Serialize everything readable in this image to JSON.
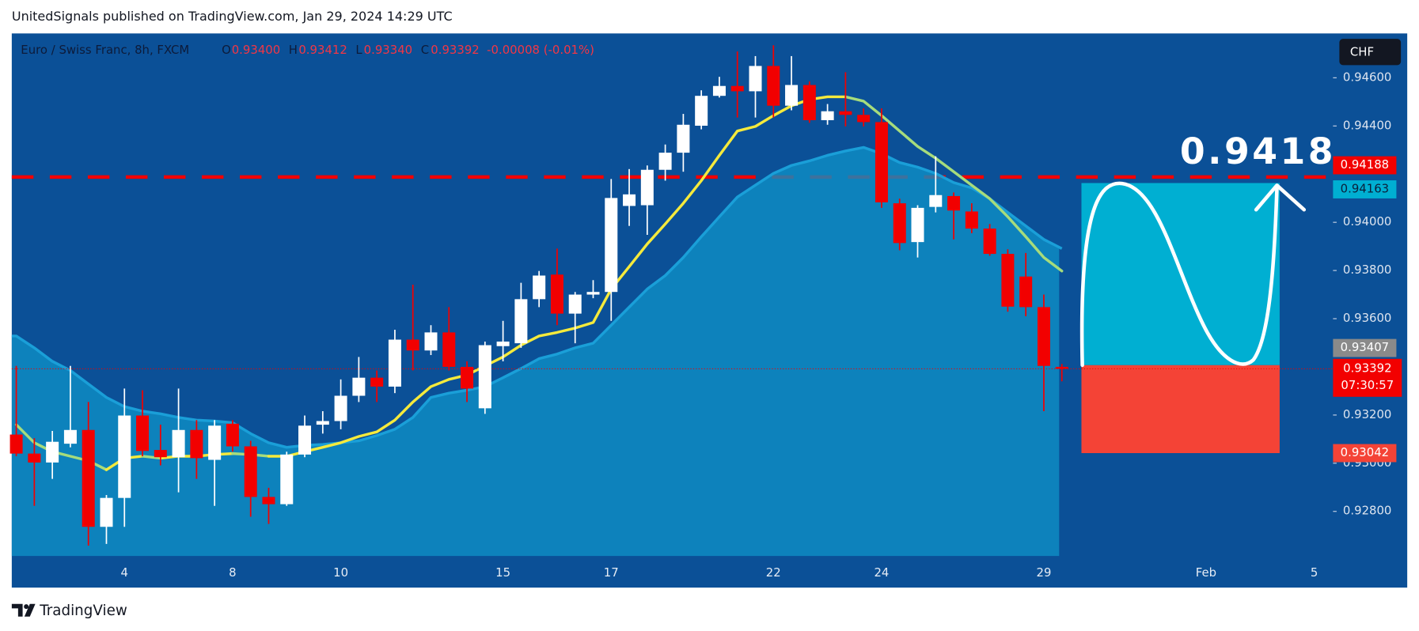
{
  "header": {
    "text": "UnitedSignals published on TradingView.com, Jan 29, 2024 14:29 UTC"
  },
  "chart_data": {
    "type": "candlestick",
    "legend": {
      "symbol": "Euro / Swiss Franc, 8h, FXCM",
      "open_label": "O",
      "open": "0.93400",
      "high_label": "H",
      "high": "0.93412",
      "low_label": "L",
      "low": "0.93340",
      "close_label": "C",
      "close": "0.93392",
      "change": "-0.00008 (-0.01%)"
    },
    "currency": "CHF",
    "categories": [
      null,
      null,
      null,
      null,
      null,
      null,
      "4",
      null,
      null,
      null,
      null,
      null,
      "8",
      null,
      null,
      null,
      null,
      null,
      "10",
      null,
      null,
      null,
      null,
      null,
      null,
      null,
      null,
      "15",
      null,
      null,
      null,
      null,
      null,
      "17",
      null,
      null,
      null,
      null,
      null,
      null,
      null,
      null,
      "22",
      null,
      null,
      null,
      null,
      null,
      "24",
      null,
      null,
      null,
      null,
      null,
      null,
      null,
      null,
      "29",
      null,
      null,
      null,
      null,
      null,
      null,
      null,
      null,
      "Feb",
      null,
      null,
      null,
      null,
      null,
      "5"
    ],
    "open": [
      0.93119,
      0.9304,
      0.93003,
      0.93081,
      0.93138,
      0.92736,
      0.92856,
      0.93198,
      0.93055,
      0.93025,
      0.93138,
      0.93014,
      0.93164,
      0.9307,
      0.9286,
      0.9283,
      0.93036,
      0.9316,
      0.93175,
      0.9328,
      0.93355,
      0.93318,
      0.93513,
      0.93468,
      0.93543,
      0.934,
      0.93228,
      0.93486,
      0.93498,
      0.93681,
      0.93783,
      0.93621,
      0.937,
      0.93711,
      0.94068,
      0.94071,
      0.94218,
      0.94289,
      0.94401,
      0.94525,
      0.94566,
      0.94544,
      0.94649,
      0.94484,
      0.9457,
      0.94424,
      0.94461,
      0.94446,
      0.94416,
      0.94079,
      0.93918,
      0.94064,
      0.94109,
      0.94045,
      0.93974,
      0.93869,
      0.93775,
      0.93648,
      0.934,
      null,
      null,
      null,
      null,
      null,
      null,
      null,
      null,
      null,
      null,
      null,
      null,
      null,
      null
    ],
    "high": [
      0.93404,
      0.93104,
      0.93134,
      0.93404,
      0.93254,
      0.92868,
      0.9331,
      0.93303,
      0.9316,
      0.9331,
      0.93179,
      0.93179,
      0.93179,
      0.93093,
      0.92898,
      0.93048,
      0.93198,
      0.93216,
      0.93348,
      0.93441,
      0.93385,
      0.93554,
      0.93741,
      0.93573,
      0.93648,
      0.93423,
      0.93505,
      0.93591,
      0.93749,
      0.93798,
      0.93891,
      0.93711,
      0.9376,
      0.9418,
      0.94221,
      0.94236,
      0.94323,
      0.9445,
      0.94548,
      0.94604,
      0.94709,
      0.9469,
      0.94735,
      0.9469,
      0.94585,
      0.94491,
      0.94623,
      0.94473,
      0.94473,
      0.94098,
      0.94071,
      0.94274,
      0.94124,
      0.94079,
      0.93993,
      0.93888,
      0.93873,
      0.937,
      0.93412,
      null,
      null,
      null,
      null,
      null,
      null,
      null,
      null,
      null,
      null,
      null,
      null,
      null,
      null
    ],
    "low": [
      0.93029,
      0.92823,
      0.92935,
      0.93066,
      0.92658,
      0.92665,
      0.92736,
      0.93029,
      0.92991,
      0.92879,
      0.92935,
      0.92823,
      0.93048,
      0.92778,
      0.92748,
      0.92823,
      0.93025,
      0.93123,
      0.93141,
      0.93254,
      0.93254,
      0.93291,
      0.93385,
      0.93449,
      0.93385,
      0.93254,
      0.93205,
      0.93423,
      0.93479,
      0.93648,
      0.93573,
      0.93498,
      0.93685,
      0.93591,
      0.93985,
      0.93948,
      0.94173,
      0.9421,
      0.94386,
      0.94518,
      0.94435,
      0.94435,
      0.94435,
      0.94465,
      0.94413,
      0.94405,
      0.94398,
      0.94398,
      0.9406,
      0.93884,
      0.93854,
      0.94041,
      0.93929,
      0.93955,
      0.93861,
      0.93629,
      0.9361,
      0.93216,
      0.9334,
      null,
      null,
      null,
      null,
      null,
      null,
      null,
      null,
      null,
      null,
      null,
      null,
      null,
      null
    ],
    "close": [
      0.9304,
      0.93003,
      0.93089,
      0.93138,
      0.92736,
      0.92856,
      0.93198,
      0.93051,
      0.93025,
      0.93138,
      0.93021,
      0.93156,
      0.9307,
      0.9286,
      0.9283,
      0.93036,
      0.93156,
      0.93175,
      0.9328,
      0.93355,
      0.93318,
      0.93513,
      0.93468,
      0.93543,
      0.934,
      0.9331,
      0.9349,
      0.93505,
      0.93681,
      0.93779,
      0.93621,
      0.937,
      0.93711,
      0.94101,
      0.94116,
      0.94218,
      0.94289,
      0.94405,
      0.94525,
      0.94566,
      0.94544,
      0.94649,
      0.94484,
      0.9457,
      0.94424,
      0.94461,
      0.94446,
      0.94416,
      0.94083,
      0.93914,
      0.9406,
      0.94113,
      0.94049,
      0.93974,
      0.93869,
      0.9365,
      0.93648,
      0.93404,
      0.93392,
      null,
      null,
      null,
      null,
      null,
      null,
      null,
      null,
      null,
      null,
      null,
      null,
      null,
      null
    ],
    "up_color": "#ffffff",
    "down_color": "#f20000",
    "ma": {
      "values": [
        0.9316,
        0.93085,
        0.93048,
        0.93029,
        0.9301,
        0.92973,
        0.93021,
        0.93029,
        0.93021,
        0.93029,
        0.93029,
        0.93036,
        0.9304,
        0.93036,
        0.93029,
        0.93029,
        0.93048,
        0.93066,
        0.93085,
        0.93111,
        0.9313,
        0.93179,
        0.93254,
        0.93318,
        0.93348,
        0.93366,
        0.93404,
        0.93441,
        0.9349,
        0.93528,
        0.93543,
        0.93561,
        0.93584,
        0.93723,
        0.93816,
        0.9391,
        0.93993,
        0.94079,
        0.94173,
        0.94278,
        0.94379,
        0.94398,
        0.94443,
        0.94484,
        0.9451,
        0.94521,
        0.94521,
        0.94503,
        0.94443,
        0.94379,
        0.94315,
        0.94266,
        0.9421,
        0.94154,
        0.94098,
        0.94023,
        0.9394,
        0.93854,
        0.93798,
        null,
        null,
        null,
        null,
        null,
        null,
        null,
        null,
        null,
        null,
        null,
        null,
        null,
        null
      ],
      "up_color": "#f5ea3c",
      "down_color": "#a6dc7c"
    },
    "band": {
      "values": [
        0.93528,
        0.93479,
        0.93423,
        0.93385,
        0.93329,
        0.93273,
        0.93235,
        0.93216,
        0.93205,
        0.9319,
        0.93179,
        0.93175,
        0.93168,
        0.93123,
        0.93085,
        0.93066,
        0.93074,
        0.93078,
        0.93085,
        0.93093,
        0.93115,
        0.93141,
        0.9319,
        0.93273,
        0.93291,
        0.93303,
        0.93318,
        0.93355,
        0.93393,
        0.93434,
        0.93453,
        0.93479,
        0.93498,
        0.93573,
        0.93648,
        0.93723,
        0.93779,
        0.93854,
        0.9394,
        0.94023,
        0.94105,
        0.94154,
        0.94203,
        0.94236,
        0.94255,
        0.94278,
        0.94296,
        0.94311,
        0.94285,
        0.94248,
        0.94229,
        0.94203,
        0.94165,
        0.94143,
        0.94098,
        0.94041,
        0.93985,
        0.93929,
        0.93891,
        null,
        null,
        null,
        null,
        null,
        null,
        null,
        null,
        null,
        null,
        null,
        null,
        null,
        null
      ],
      "color": "#0e8fc6",
      "line_color": "#1a9fd8"
    },
    "ylim": [
      0.92615,
      0.94784
    ],
    "yticks": [
      {
        "value": 0.928,
        "label": "0.92800"
      },
      {
        "value": 0.93,
        "label": "0.93000"
      },
      {
        "value": 0.932,
        "label": "0.93200"
      },
      {
        "value": 0.936,
        "label": "0.93600"
      },
      {
        "value": 0.938,
        "label": "0.93800"
      },
      {
        "value": 0.94,
        "label": "0.94000"
      },
      {
        "value": 0.944,
        "label": "0.94400"
      },
      {
        "value": 0.946,
        "label": "0.94600"
      }
    ],
    "horizontal_line": {
      "value": 0.94188,
      "label": "0.94188",
      "color": "#f20000"
    },
    "last_price": {
      "value": 0.93392,
      "label": "0.93392",
      "countdown": "07:30:57",
      "color": "#f20000"
    },
    "position": {
      "target": 0.94163,
      "target_label": "0.94163",
      "entry": 0.93407,
      "entry_label": "0.93407",
      "stop": 0.93042,
      "stop_label": "0.93042",
      "profit_color": "#00afd2",
      "loss_color": "#f44336",
      "entry_color": "#8a8a8a"
    },
    "annotation": "0.9418"
  },
  "footer": {
    "brand": "TradingView"
  }
}
